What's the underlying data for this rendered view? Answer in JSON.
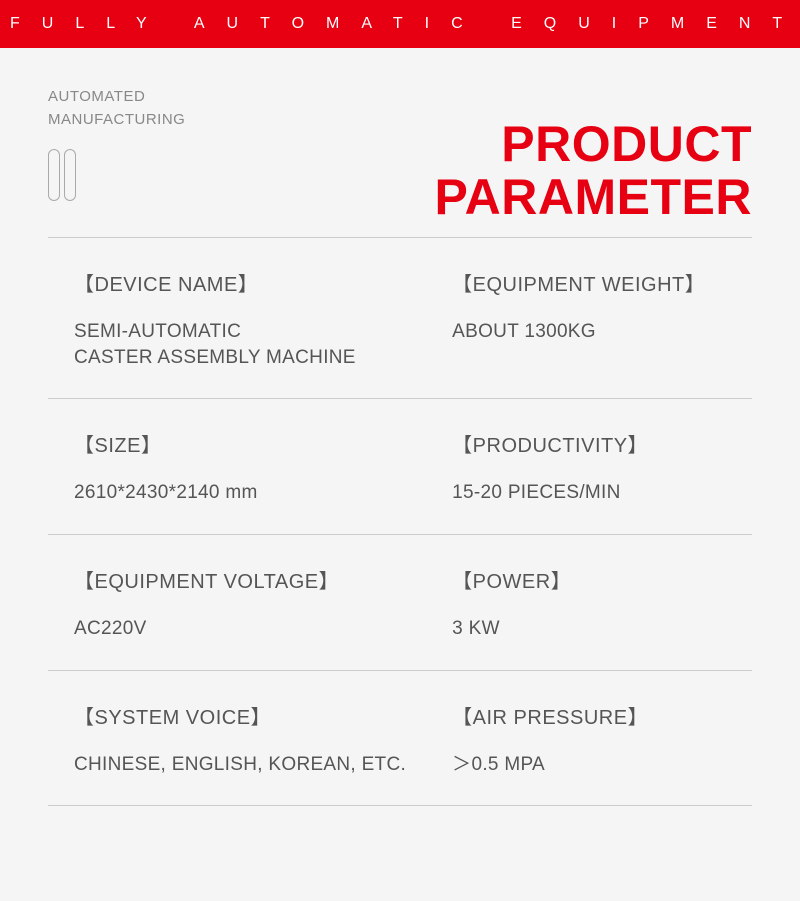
{
  "banner": {
    "text": "FULLY AUTOMATIC EQUIPMENT",
    "background_color": "#e60012",
    "text_color": "#ffffff",
    "letter_spacing": 22
  },
  "header": {
    "subheader_line1": "AUTOMATED",
    "subheader_line2": "MANUFACTURING",
    "title_line1": "PRODUCT",
    "title_line2": "PARAMETER",
    "title_color": "#e60012",
    "title_fontsize": 50
  },
  "rows": [
    {
      "left_label": "【DEVICE NAME】",
      "left_value_line1": "SEMI-AUTOMATIC",
      "left_value_line2": "CASTER ASSEMBLY MACHINE",
      "right_label": "【EQUIPMENT WEIGHT】",
      "right_value": "ABOUT 1300KG"
    },
    {
      "left_label": "【SIZE】",
      "left_value": "2610*2430*2140 mm",
      "right_label": "【PRODUCTIVITY】",
      "right_value": "15-20 PIECES/MIN"
    },
    {
      "left_label": "【EQUIPMENT VOLTAGE】",
      "left_value": "AC220V",
      "right_label": "【POWER】",
      "right_value": "3 KW"
    },
    {
      "left_label": "【SYSTEM VOICE】",
      "left_value": "CHINESE, ENGLISH, KOREAN, ETC.",
      "right_label": "【AIR PRESSURE】",
      "right_value": "＞0.5 MPA"
    }
  ],
  "style": {
    "background_color": "#f5f5f5",
    "label_color": "#555555",
    "value_color": "#555555",
    "divider_color": "#cccccc",
    "subheader_color": "#888888"
  }
}
